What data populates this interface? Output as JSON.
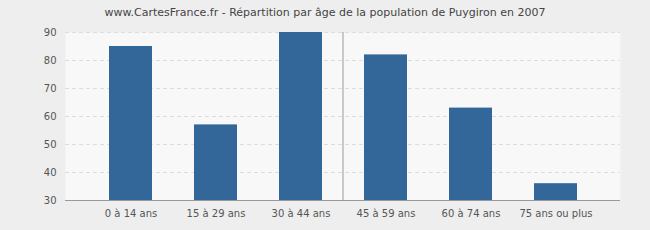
{
  "chart_data": {
    "type": "bar",
    "title": "www.CartesFrance.fr - Répartition par âge de la population de Puygiron en 2007",
    "categories": [
      "0 à 14 ans",
      "15 à 29 ans",
      "30 à 44 ans",
      "45 à 59 ans",
      "60 à 74 ans",
      "75 ans ou plus"
    ],
    "values": [
      85,
      57,
      90,
      82,
      63,
      36
    ],
    "color": "#336699",
    "ylim": [
      30,
      90
    ],
    "yticks": [
      30,
      40,
      50,
      60,
      70,
      80,
      90
    ],
    "grid": true
  }
}
